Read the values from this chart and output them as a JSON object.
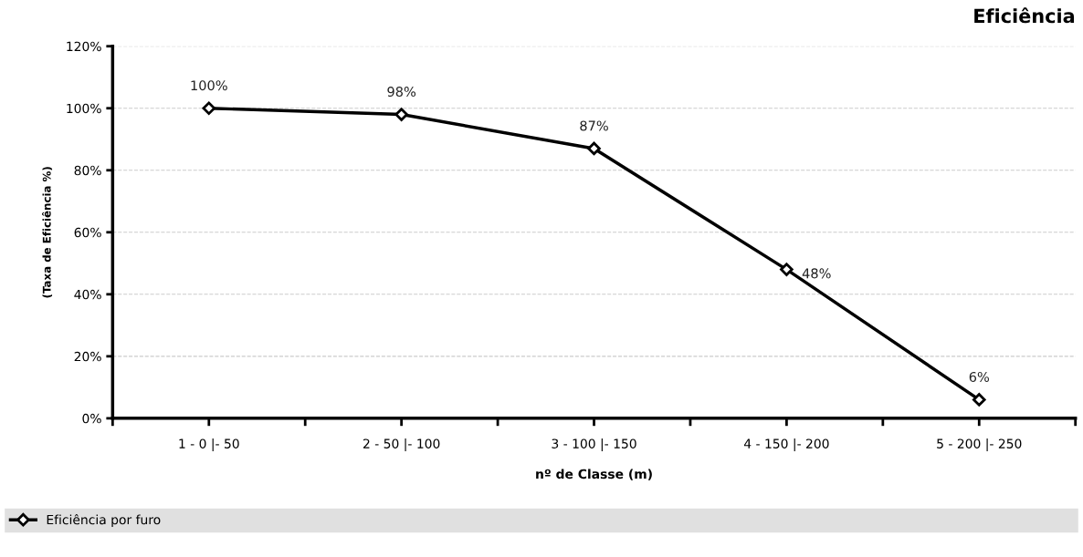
{
  "chart_data": {
    "type": "line",
    "title": "Eficiência",
    "xlabel": "nº de Classe (m)",
    "ylabel": "(Taxa de Eficiência %)",
    "categories": [
      "1 - 0 |- 50",
      "2 - 50 |- 100",
      "3 - 100 |- 150",
      "4 - 150 |- 200",
      "5 - 200 |- 250"
    ],
    "series": [
      {
        "name": "Eficiência por furo",
        "color": "#000000",
        "values": [
          100,
          98,
          87,
          48,
          6
        ],
        "value_labels": [
          "100%",
          "98%",
          "87%",
          "48%",
          "6%"
        ]
      }
    ],
    "ylim": [
      0,
      120
    ],
    "yticks": [
      {
        "value": 0,
        "label": "0%"
      },
      {
        "value": 20,
        "label": "20%"
      },
      {
        "value": 40,
        "label": "40%"
      },
      {
        "value": 60,
        "label": "60%"
      },
      {
        "value": 80,
        "label": "80%"
      },
      {
        "value": 100,
        "label": "100%"
      },
      {
        "value": 120,
        "label": "120%"
      }
    ],
    "grid": "y",
    "legend": "bottom",
    "marker": "diamond",
    "line_style": "solid"
  }
}
